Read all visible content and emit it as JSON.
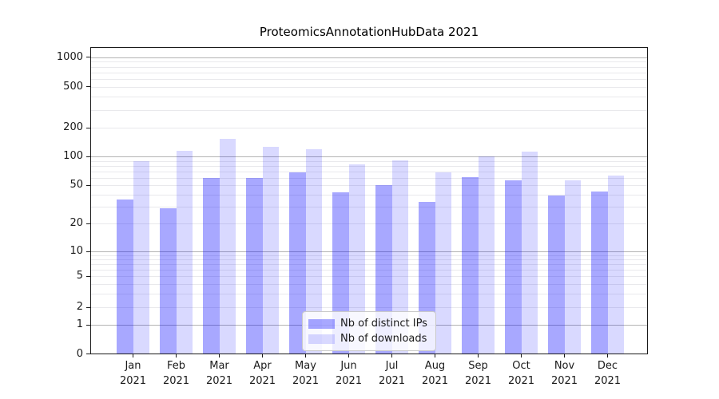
{
  "title": "ProteomicsAnnotationHubData 2021",
  "chart_data": {
    "type": "bar",
    "title": "ProteomicsAnnotationHubData 2021",
    "yscale": "symlog (log above 1, linear 0 to 1)",
    "ylim": [
      0,
      1000
    ],
    "yticks": [
      0,
      1,
      2,
      5,
      10,
      20,
      50,
      100,
      200,
      500,
      1000
    ],
    "grid": "horizontal, log major and minor lines",
    "legend_position": "lower center inside plot",
    "categories": [
      "Jan",
      "Feb",
      "Mar",
      "Apr",
      "May",
      "Jun",
      "Jul",
      "Aug",
      "Sep",
      "Oct",
      "Nov",
      "Dec"
    ],
    "category_year": "2021",
    "series": [
      {
        "name": "Nb of distinct IPs",
        "color": "#0000ff57",
        "values": [
          36,
          29,
          60,
          60,
          68,
          42,
          50,
          34,
          61,
          56,
          39,
          43
        ]
      },
      {
        "name": "Nb of downloads",
        "color": "#0000ff26",
        "values": [
          90,
          115,
          155,
          128,
          120,
          83,
          92,
          68,
          101,
          112,
          56,
          64
        ]
      }
    ]
  },
  "colors": {
    "major_grid": "#b3b3b3",
    "minor_grid": "#e9e9ec",
    "spine": "#1a1a1a",
    "text": "#1a1a1a"
  }
}
